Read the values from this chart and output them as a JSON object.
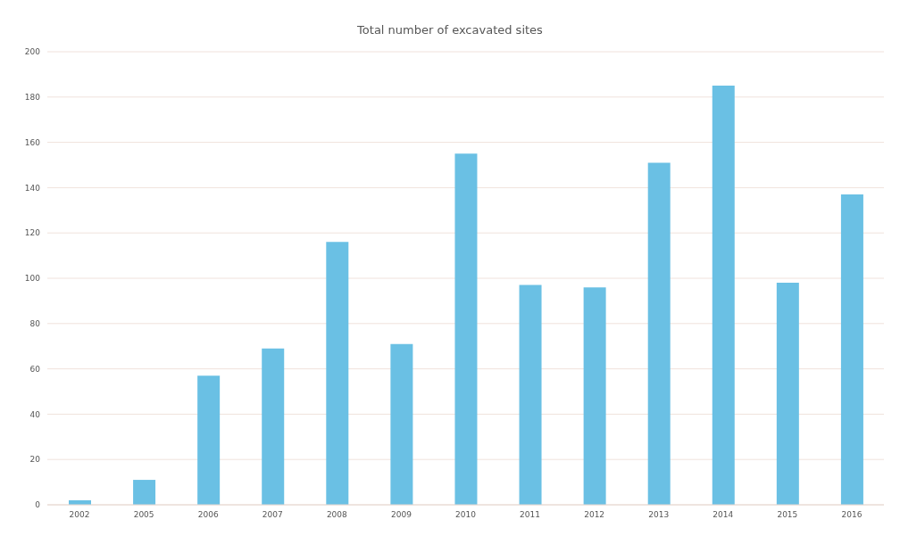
{
  "chart_data": {
    "type": "bar",
    "title": "Total number of excavated sites",
    "categories": [
      "2002",
      "2005",
      "2006",
      "2007",
      "2008",
      "2009",
      "2010",
      "2011",
      "2012",
      "2013",
      "2014",
      "2015",
      "2016"
    ],
    "values": [
      2,
      11,
      57,
      69,
      116,
      71,
      155,
      97,
      96,
      151,
      185,
      98,
      137
    ],
    "color": "#6ac0e4",
    "ylim": [
      0,
      200
    ],
    "yticks": [
      0,
      20,
      40,
      60,
      80,
      100,
      120,
      140,
      160,
      180,
      200
    ],
    "grid": "y",
    "legend": false
  }
}
